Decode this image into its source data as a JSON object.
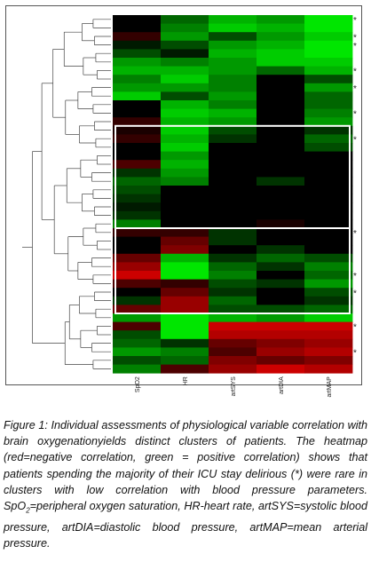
{
  "chart_data": {
    "type": "heatmap",
    "columns": [
      "SpO2",
      "HR",
      "artSYS",
      "artDIA",
      "artMAP"
    ],
    "scale": {
      "negative_color": "#ff0000",
      "zero_color": "#000000",
      "positive_color": "#00ff00",
      "range": [
        -1,
        1
      ]
    },
    "rows": [
      {
        "values": [
          0.0,
          0.4,
          0.7,
          0.6,
          0.9
        ],
        "delirious": true
      },
      {
        "values": [
          0.0,
          0.5,
          0.8,
          0.7,
          0.9
        ],
        "delirious": false
      },
      {
        "values": [
          -0.2,
          0.6,
          0.3,
          0.6,
          0.8
        ],
        "delirious": true
      },
      {
        "values": [
          0.1,
          0.3,
          0.6,
          0.7,
          0.9
        ],
        "delirious": true
      },
      {
        "values": [
          0.3,
          0.1,
          0.7,
          0.8,
          0.9
        ],
        "delirious": false
      },
      {
        "values": [
          0.6,
          0.5,
          0.6,
          0.8,
          0.8
        ],
        "delirious": false
      },
      {
        "values": [
          0.7,
          0.7,
          0.6,
          0.4,
          0.7
        ],
        "delirious": true
      },
      {
        "values": [
          0.5,
          0.8,
          0.5,
          0.0,
          0.3
        ],
        "delirious": false
      },
      {
        "values": [
          0.6,
          0.6,
          0.5,
          0.0,
          0.6
        ],
        "delirious": true
      },
      {
        "values": [
          0.8,
          0.3,
          0.6,
          0.0,
          0.4
        ],
        "delirious": false
      },
      {
        "values": [
          0.0,
          0.7,
          0.5,
          0.0,
          0.4
        ],
        "delirious": false
      },
      {
        "values": [
          0.0,
          0.8,
          0.7,
          0.0,
          0.5
        ],
        "delirious": true
      },
      {
        "values": [
          -0.2,
          0.7,
          0.6,
          0.0,
          0.6
        ],
        "delirious": false
      },
      {
        "values": [
          -0.1,
          0.8,
          0.3,
          0.0,
          0.2
        ],
        "delirious": false
      },
      {
        "values": [
          -0.2,
          0.7,
          0.2,
          0.0,
          0.4
        ],
        "delirious": true
      },
      {
        "values": [
          0.0,
          0.8,
          0.0,
          0.0,
          0.3
        ],
        "delirious": false
      },
      {
        "values": [
          0.0,
          0.6,
          0.0,
          0.0,
          0.0
        ],
        "delirious": false
      },
      {
        "values": [
          -0.3,
          0.7,
          0.0,
          0.0,
          0.0
        ],
        "delirious": false
      },
      {
        "values": [
          0.2,
          0.6,
          0.0,
          0.0,
          0.0
        ],
        "delirious": false
      },
      {
        "values": [
          0.4,
          0.5,
          0.0,
          0.2,
          0.0
        ],
        "delirious": false
      },
      {
        "values": [
          0.3,
          0.0,
          0.0,
          0.0,
          0.0
        ],
        "delirious": false
      },
      {
        "values": [
          0.2,
          0.0,
          0.0,
          0.0,
          0.0
        ],
        "delirious": false
      },
      {
        "values": [
          0.1,
          0.0,
          0.0,
          0.0,
          0.0
        ],
        "delirious": false
      },
      {
        "values": [
          0.2,
          0.0,
          0.0,
          0.0,
          0.0
        ],
        "delirious": false
      },
      {
        "values": [
          0.5,
          0.0,
          0.0,
          -0.1,
          0.0
        ],
        "delirious": false
      },
      {
        "values": [
          -0.2,
          -0.2,
          0.2,
          0.0,
          0.0
        ],
        "delirious": true
      },
      {
        "values": [
          0.0,
          -0.4,
          0.2,
          0.0,
          0.0
        ],
        "delirious": false
      },
      {
        "values": [
          0.0,
          -0.5,
          0.0,
          0.2,
          0.0
        ],
        "delirious": false
      },
      {
        "values": [
          -0.4,
          0.7,
          0.2,
          0.4,
          0.3
        ],
        "delirious": false
      },
      {
        "values": [
          -0.6,
          0.9,
          0.4,
          0.2,
          0.5
        ],
        "delirious": false
      },
      {
        "values": [
          -0.8,
          0.9,
          0.5,
          0.0,
          0.4
        ],
        "delirious": true
      },
      {
        "values": [
          -0.3,
          -0.2,
          0.3,
          0.2,
          0.6
        ],
        "delirious": false
      },
      {
        "values": [
          0.0,
          -0.4,
          0.2,
          0.0,
          0.3
        ],
        "delirious": true
      },
      {
        "values": [
          0.2,
          -0.6,
          0.4,
          0.0,
          0.2
        ],
        "delirious": false
      },
      {
        "values": [
          -0.4,
          -0.6,
          0.3,
          0.3,
          0.4
        ],
        "delirious": false
      },
      {
        "values": [
          0.6,
          0.9,
          0.7,
          0.6,
          0.8
        ],
        "delirious": false
      },
      {
        "values": [
          -0.3,
          0.9,
          -0.8,
          -0.8,
          -0.8
        ],
        "delirious": true
      },
      {
        "values": [
          0.3,
          0.9,
          -0.7,
          -0.7,
          -0.7
        ],
        "delirious": false
      },
      {
        "values": [
          0.4,
          0.2,
          -0.4,
          -0.5,
          -0.6
        ],
        "delirious": false
      },
      {
        "values": [
          0.6,
          0.5,
          -0.3,
          -0.6,
          -0.7
        ],
        "delirious": true
      },
      {
        "values": [
          0.3,
          0.4,
          -0.5,
          -0.4,
          -0.5
        ],
        "delirious": false
      },
      {
        "values": [
          0.5,
          -0.3,
          -0.6,
          -0.8,
          -0.7
        ],
        "delirious": false
      }
    ],
    "cluster_boxes": [
      {
        "first_row": 13,
        "last_row": 24
      },
      {
        "first_row": 25,
        "last_row": 34
      }
    ],
    "marker_symbol": "*"
  },
  "caption": {
    "label": "Figure 1:",
    "text_1": " Individual assessments of physiological variable correlation with brain oxygenationyields distinct clusters of patients. The heatmap (red=negative correlation, green = positive correlation) shows that patients spending the majority of their ICU stay delirious (*) were rare in clusters with low correlation with blood pressure parameters. SpO",
    "sub": "2",
    "text_2": "=peripheral oxygen saturation, HR-heart rate, artSYS=systolic blood pressure, artDIA=diastolic blood pressure, artMAP=mean arterial pressure."
  }
}
